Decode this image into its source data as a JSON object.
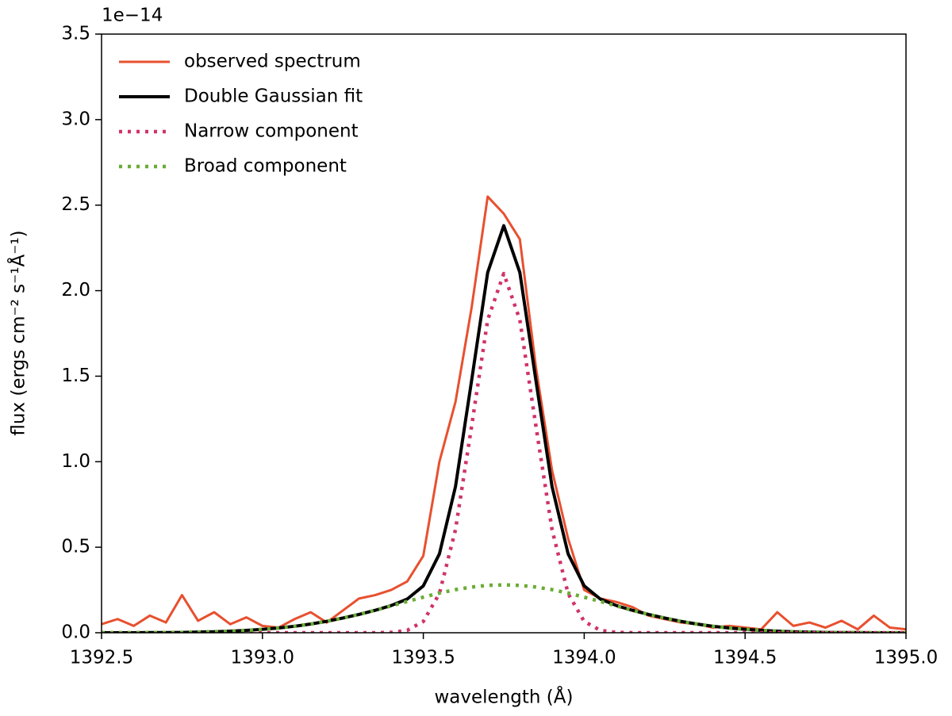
{
  "chart_data": {
    "type": "line",
    "xlabel": "wavelength (Å)",
    "ylabel": "flux (ergs cm⁻² s⁻¹Å⁻¹)",
    "y_offset_label": "1e−14",
    "xlim": [
      1392.5,
      1395.0
    ],
    "ylim": [
      0,
      3.5
    ],
    "xticks": [
      1392.5,
      {
        "value": 1393.0,
        "label": "1393.0"
      },
      1393.5,
      {
        "value": 1394.0,
        "label": "1394.0"
      },
      1394.5,
      {
        "value": 1395.0,
        "label": "1395.0"
      }
    ],
    "yticks": [
      {
        "value": 0,
        "label": "0.0"
      },
      0.5,
      {
        "value": 1,
        "label": "1.0"
      },
      1.5,
      {
        "value": 2,
        "label": "2.0"
      },
      2.5,
      {
        "value": 3,
        "label": "3.0"
      },
      3.5
    ],
    "grid": false,
    "legend": "upper left",
    "x": [
      1392.5,
      1392.55,
      1392.6,
      1392.65,
      1392.7,
      1392.75,
      1392.8,
      1392.85,
      1392.9,
      1392.95,
      1393.0,
      1393.05,
      1393.1,
      1393.15,
      1393.2,
      1393.25,
      1393.3,
      1393.35,
      1393.4,
      1393.45,
      1393.5,
      1393.55,
      1393.6,
      1393.65,
      1393.7,
      1393.75,
      1393.8,
      1393.85,
      1393.9,
      1393.95,
      1394.0,
      1394.05,
      1394.1,
      1394.15,
      1394.2,
      1394.25,
      1394.3,
      1394.35,
      1394.4,
      1394.45,
      1394.5,
      1394.55,
      1394.6,
      1394.65,
      1394.7,
      1394.75,
      1394.8,
      1394.85,
      1394.9,
      1394.95,
      1395.0
    ],
    "series": [
      {
        "name": "observed spectrum",
        "color": "#e8502f",
        "linestyle": "solid",
        "values": [
          0.05,
          0.08,
          0.04,
          0.1,
          0.06,
          0.22,
          0.07,
          0.12,
          0.05,
          0.09,
          0.04,
          0.03,
          0.08,
          0.12,
          0.06,
          0.13,
          0.2,
          0.22,
          0.25,
          0.3,
          0.45,
          1.0,
          1.35,
          1.9,
          2.55,
          2.45,
          2.3,
          1.55,
          0.95,
          0.55,
          0.25,
          0.2,
          0.18,
          0.15,
          0.1,
          0.08,
          0.06,
          0.05,
          0.03,
          0.04,
          0.03,
          0.02,
          0.12,
          0.04,
          0.06,
          0.03,
          0.07,
          0.02,
          0.1,
          0.03,
          0.02
        ]
      },
      {
        "name": "Double Gaussian fit",
        "color": "#000000",
        "linestyle": "solid",
        "values": [
          0,
          0,
          0,
          0.001,
          0.001,
          0.002,
          0.004,
          0.006,
          0.009,
          0.014,
          0.02,
          0.028,
          0.038,
          0.051,
          0.067,
          0.086,
          0.107,
          0.131,
          0.159,
          0.197,
          0.274,
          0.461,
          0.855,
          1.474,
          2.106,
          2.38,
          2.106,
          1.474,
          0.855,
          0.461,
          0.274,
          0.197,
          0.159,
          0.131,
          0.107,
          0.086,
          0.067,
          0.051,
          0.038,
          0.028,
          0.02,
          0.014,
          0.009,
          0.006,
          0.004,
          0.002,
          0.001,
          0.001,
          0,
          0,
          0
        ]
      },
      {
        "name": "Narrow component",
        "color": "#d0336b",
        "linestyle": "dotted",
        "values": [
          0,
          0,
          0,
          0,
          0,
          0,
          0,
          0,
          0,
          0,
          0,
          0,
          0,
          0,
          0,
          0,
          0,
          0,
          0.002,
          0.014,
          0.066,
          0.229,
          0.603,
          1.207,
          1.829,
          2.1,
          1.829,
          1.207,
          0.603,
          0.229,
          0.066,
          0.014,
          0.002,
          0,
          0,
          0,
          0,
          0,
          0,
          0,
          0,
          0,
          0,
          0,
          0,
          0,
          0,
          0,
          0,
          0,
          0
        ]
      },
      {
        "name": "Broad component",
        "color": "#6aac35",
        "linestyle": "dotted",
        "values": [
          0,
          0,
          0,
          0.001,
          0.001,
          0.002,
          0.004,
          0.006,
          0.009,
          0.014,
          0.02,
          0.028,
          0.038,
          0.051,
          0.067,
          0.086,
          0.107,
          0.131,
          0.157,
          0.183,
          0.208,
          0.232,
          0.252,
          0.267,
          0.277,
          0.28,
          0.277,
          0.267,
          0.252,
          0.232,
          0.208,
          0.183,
          0.157,
          0.131,
          0.107,
          0.086,
          0.067,
          0.051,
          0.038,
          0.028,
          0.02,
          0.014,
          0.009,
          0.006,
          0.004,
          0.002,
          0.001,
          0.001,
          0,
          0,
          0
        ]
      }
    ]
  }
}
